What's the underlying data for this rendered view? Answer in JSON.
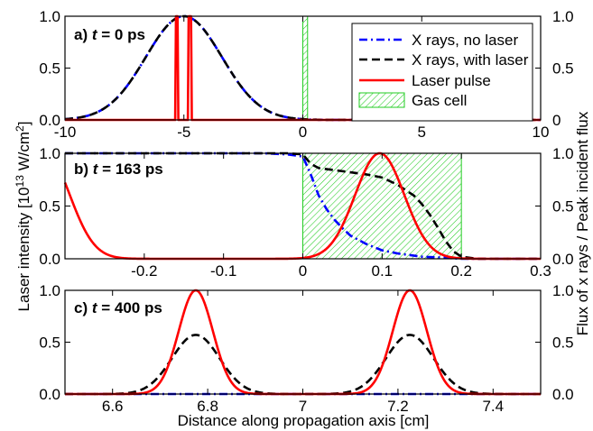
{
  "figure": {
    "ylabel_left_main": "Laser intensity [10",
    "ylabel_left_exp": "13",
    "ylabel_left_unit": " W/cm",
    "ylabel_left_sq": "2",
    "ylabel_left_end": "]",
    "ylabel_right": "Flux of x rays / Peak incident flux",
    "xlabel": "Distance along propagation axis [cm]"
  },
  "legend": {
    "items": [
      {
        "label": "X rays, no laser",
        "color": "#0000ff",
        "style": "dashdot"
      },
      {
        "label": "X rays, with laser",
        "color": "#000000",
        "style": "dashed"
      },
      {
        "label": "Laser pulse",
        "color": "#ff0000",
        "style": "solid"
      },
      {
        "label": "Gas cell",
        "color": "#00cc00",
        "style": "hatch"
      }
    ]
  },
  "chart_data": [
    {
      "type": "line",
      "panel": "a)",
      "tag_prefix": "a) ",
      "tag_t": "t",
      "tag_suffix": " = 0 ps",
      "xlim": [
        -10,
        10
      ],
      "ylim": [
        0,
        1
      ],
      "xticks": [
        "-10",
        "-5",
        "0",
        "5",
        "10"
      ],
      "yticks_left": [
        "0.0",
        "0.5",
        "1.0"
      ],
      "yticks_right": [
        "0",
        "0.5",
        "1.0"
      ],
      "gas_cell": [
        0.0,
        0.2
      ],
      "series": [
        {
          "name": "X rays, no laser",
          "kind": "gauss",
          "center": -5.0,
          "sigma": 1.6,
          "amp": 1.0
        },
        {
          "name": "X rays, with laser",
          "kind": "gauss",
          "center": -5.0,
          "sigma": 1.6,
          "amp": 1.0
        },
        {
          "name": "Laser pulse",
          "kind": "pulses",
          "centers": [
            -5.3,
            -4.75
          ],
          "width": 0.12,
          "amp": 1.0
        }
      ]
    },
    {
      "type": "line",
      "panel": "b)",
      "tag_prefix": "b) ",
      "tag_t": "t",
      "tag_suffix": " = 163 ps",
      "xlim": [
        -0.3,
        0.3
      ],
      "ylim": [
        0,
        1
      ],
      "xticks": [
        "-0.2",
        "-0.1",
        "0",
        "0.1",
        "0.2",
        "0.3"
      ],
      "yticks_left": [
        "0.0",
        "0.5",
        "1.0"
      ],
      "yticks_right": [
        "0.0",
        "0.5",
        "1.0"
      ],
      "gas_cell": [
        0.0,
        0.2
      ],
      "series": [
        {
          "name": "X rays, no laser",
          "x": [
            -0.3,
            -0.05,
            -0.02,
            0.0,
            0.01,
            0.02,
            0.03,
            0.04,
            0.05,
            0.06,
            0.08,
            0.1,
            0.12,
            0.15,
            0.18,
            0.2,
            0.22,
            0.3
          ],
          "y": [
            1.0,
            1.0,
            0.99,
            0.97,
            0.8,
            0.6,
            0.47,
            0.37,
            0.29,
            0.22,
            0.14,
            0.08,
            0.05,
            0.02,
            0.01,
            0.0,
            0.0,
            0.0
          ]
        },
        {
          "name": "X rays, with laser",
          "x": [
            -0.3,
            -0.02,
            0.0,
            0.01,
            0.02,
            0.04,
            0.06,
            0.08,
            0.1,
            0.12,
            0.14,
            0.15,
            0.16,
            0.17,
            0.18,
            0.19,
            0.2,
            0.22,
            0.3
          ],
          "y": [
            1.0,
            1.0,
            0.99,
            0.9,
            0.86,
            0.84,
            0.82,
            0.8,
            0.77,
            0.7,
            0.6,
            0.52,
            0.42,
            0.3,
            0.17,
            0.07,
            0.02,
            0.0,
            0.0
          ]
        },
        {
          "name": "Laser pulse",
          "kind": "gauss_multi",
          "centers": [
            0.097,
            -0.325
          ],
          "sigma": 0.031,
          "amp": 1.0
        }
      ]
    },
    {
      "type": "line",
      "panel": "c)",
      "tag_prefix": "c) ",
      "tag_t": "t",
      "tag_suffix": " = 400 ps",
      "xlim": [
        6.5,
        7.5
      ],
      "ylim": [
        0,
        1
      ],
      "xticks": [
        "6.6",
        "6.8",
        "7",
        "7.2",
        "7.4"
      ],
      "yticks_left": [
        "0.0",
        "0.5",
        "1.0"
      ],
      "yticks_right": [
        "0.0",
        "0.5",
        "1.0"
      ],
      "series": [
        {
          "name": "X rays, no laser",
          "x": [
            6.5,
            7.5
          ],
          "y": [
            0.0,
            0.0
          ]
        },
        {
          "name": "X rays, with laser",
          "kind": "gauss_multi",
          "centers": [
            6.775,
            7.225
          ],
          "sigma": 0.05,
          "amp": 0.57
        },
        {
          "name": "Laser pulse",
          "kind": "gauss_multi",
          "centers": [
            6.775,
            7.225
          ],
          "sigma": 0.036,
          "amp": 1.0
        }
      ]
    }
  ]
}
